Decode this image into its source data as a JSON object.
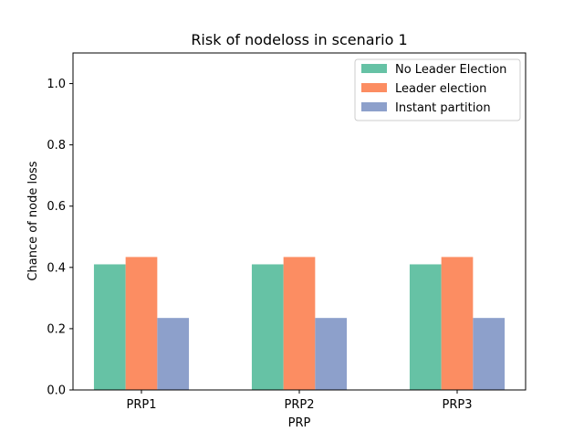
{
  "chart_data": {
    "type": "bar",
    "title": "Risk of nodeloss in scenario 1",
    "xlabel": "PRP",
    "ylabel": "Chance of node loss",
    "categories": [
      "PRP1",
      "PRP2",
      "PRP3"
    ],
    "series": [
      {
        "name": "No Leader Election",
        "color": "#66c2a5",
        "values": [
          0.41,
          0.41,
          0.41
        ]
      },
      {
        "name": "Leader election",
        "color": "#fc8d62",
        "values": [
          0.434,
          0.434,
          0.434
        ]
      },
      {
        "name": "Instant partition",
        "color": "#8da0cb",
        "values": [
          0.235,
          0.235,
          0.235
        ]
      }
    ],
    "ylim": [
      0,
      1.1
    ],
    "yticks": [
      "0.0",
      "0.2",
      "0.4",
      "0.6",
      "0.8",
      "1.0"
    ],
    "grid": false,
    "legend_position": "top-right"
  }
}
